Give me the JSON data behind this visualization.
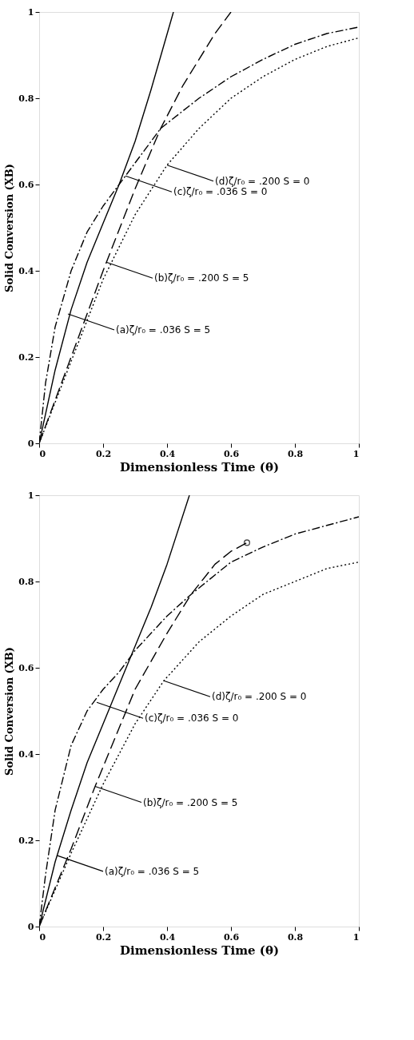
{
  "chart_data": [
    {
      "type": "line",
      "xlabel": "Dimensionless Time (θ)",
      "ylabel": "Solid Conversion (XB)",
      "xlim": [
        0,
        1
      ],
      "ylim": [
        0,
        1
      ],
      "xticks": [
        0,
        0.2,
        0.4,
        0.6,
        0.8,
        1
      ],
      "yticks": [
        0,
        0.2,
        0.4,
        0.6,
        0.8,
        1
      ],
      "grid": false,
      "series": [
        {
          "color": "#000000",
          "line_style": "solid",
          "x": [
            0,
            0.05,
            0.1,
            0.15,
            0.2,
            0.25,
            0.3,
            0.35,
            0.42
          ],
          "values": [
            0,
            0.17,
            0.31,
            0.42,
            0.51,
            0.6,
            0.7,
            0.82,
            1.0
          ]
        },
        {
          "color": "#000000",
          "line_style": "dashed",
          "x": [
            0,
            0.1,
            0.2,
            0.3,
            0.38,
            0.45,
            0.5,
            0.55,
            0.6
          ],
          "values": [
            0,
            0.2,
            0.4,
            0.59,
            0.73,
            0.83,
            0.89,
            0.95,
            1.0
          ]
        },
        {
          "color": "#000000",
          "line_style": "dashdot",
          "x": [
            0,
            0.02,
            0.05,
            0.1,
            0.15,
            0.2,
            0.26,
            0.3,
            0.38,
            0.5,
            0.6,
            0.7,
            0.8,
            0.9,
            1.0
          ],
          "values": [
            0,
            0.14,
            0.27,
            0.4,
            0.49,
            0.55,
            0.61,
            0.65,
            0.73,
            0.8,
            0.85,
            0.89,
            0.925,
            0.95,
            0.965
          ]
        },
        {
          "color": "#000000",
          "line_style": "dotted",
          "x": [
            0,
            0.1,
            0.2,
            0.3,
            0.4,
            0.5,
            0.6,
            0.7,
            0.8,
            0.9,
            1.0
          ],
          "values": [
            0,
            0.19,
            0.38,
            0.53,
            0.645,
            0.73,
            0.8,
            0.85,
            0.89,
            0.92,
            0.94
          ]
        }
      ],
      "annotations": [
        {
          "text": "(a)ζ/r₀ = .036    S = 5",
          "x": 0.09,
          "y": 0.3
        },
        {
          "text": "(b)ζ/r₀ = .200    S = 5",
          "x": 0.21,
          "y": 0.42
        },
        {
          "text": "(c)ζ/r₀ = .036    S = 0",
          "x": 0.27,
          "y": 0.62
        },
        {
          "text": "(d)ζ/r₀ = .200    S = 0",
          "x": 0.4,
          "y": 0.645
        }
      ]
    },
    {
      "type": "line",
      "xlabel": "Dimensionless Time (θ)",
      "ylabel": "Solid Conversion (XB)",
      "xlim": [
        0,
        1
      ],
      "ylim": [
        0,
        1
      ],
      "xticks": [
        0,
        0.2,
        0.4,
        0.6,
        0.8,
        1
      ],
      "yticks": [
        0,
        0.2,
        0.4,
        0.6,
        0.8,
        1
      ],
      "grid": false,
      "series": [
        {
          "color": "#000000",
          "line_style": "solid",
          "x": [
            0,
            0.05,
            0.1,
            0.15,
            0.2,
            0.25,
            0.3,
            0.35,
            0.4,
            0.47
          ],
          "values": [
            0,
            0.15,
            0.27,
            0.38,
            0.47,
            0.56,
            0.65,
            0.74,
            0.84,
            1.0
          ]
        },
        {
          "color": "#000000",
          "line_style": "dashed",
          "x": [
            0,
            0.1,
            0.175,
            0.25,
            0.3,
            0.4,
            0.475,
            0.55,
            0.6,
            0.65
          ],
          "values": [
            0,
            0.18,
            0.325,
            0.46,
            0.55,
            0.68,
            0.77,
            0.84,
            0.87,
            0.89
          ]
        },
        {
          "type": "scatter",
          "color": "#000000",
          "marker": "circle",
          "x": [
            0.65
          ],
          "values": [
            0.89
          ]
        },
        {
          "color": "#000000",
          "line_style": "dashdot",
          "x": [
            0,
            0.02,
            0.05,
            0.1,
            0.15,
            0.2,
            0.25,
            0.3,
            0.4,
            0.475,
            0.6,
            0.7,
            0.8,
            0.9,
            1.0
          ],
          "values": [
            0,
            0.12,
            0.27,
            0.42,
            0.5,
            0.55,
            0.59,
            0.64,
            0.72,
            0.77,
            0.845,
            0.88,
            0.91,
            0.93,
            0.95
          ]
        },
        {
          "color": "#000000",
          "line_style": "dotted",
          "x": [
            0,
            0.1,
            0.2,
            0.3,
            0.39,
            0.5,
            0.6,
            0.7,
            0.8,
            0.9,
            1.0
          ],
          "values": [
            0,
            0.17,
            0.33,
            0.47,
            0.57,
            0.66,
            0.72,
            0.77,
            0.8,
            0.83,
            0.845
          ]
        }
      ],
      "annotations": [
        {
          "text": "(a)ζ/r₀ = .036    S = 5",
          "x": 0.055,
          "y": 0.165
        },
        {
          "text": "(b)ζ/r₀ = .200    S = 5",
          "x": 0.175,
          "y": 0.325
        },
        {
          "text": "(c)ζ/r₀ = .036    S = 0",
          "x": 0.18,
          "y": 0.52
        },
        {
          "text": "(d)ζ/r₀ = .200    S = 0",
          "x": 0.39,
          "y": 0.57
        }
      ]
    }
  ]
}
